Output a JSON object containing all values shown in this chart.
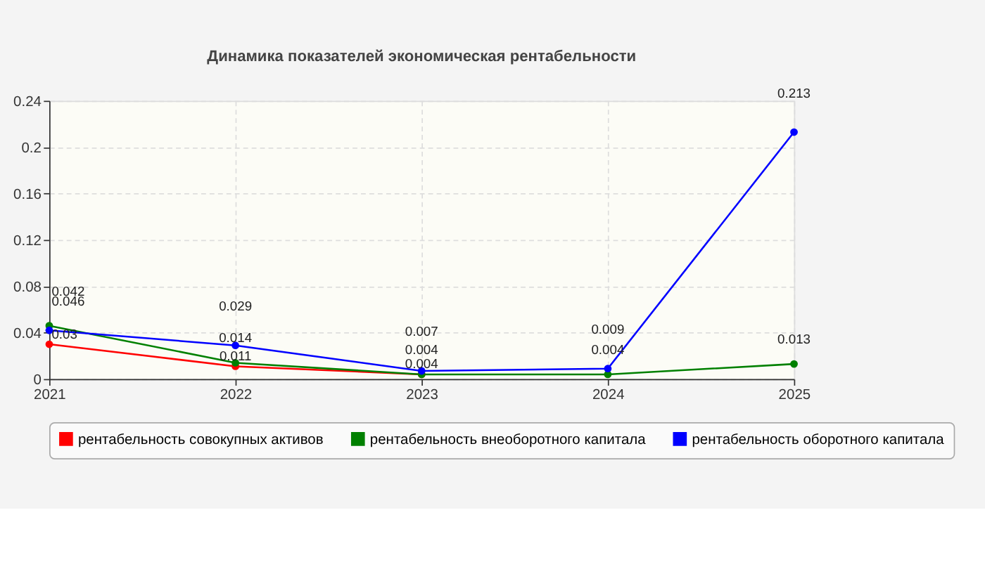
{
  "chart_data": {
    "type": "line",
    "title": "Динамика показателей экономическая рентабельности",
    "x": [
      2021,
      2022,
      2023,
      2024,
      2025
    ],
    "xlim": [
      2021,
      2025
    ],
    "xticks": [
      2021,
      2022,
      2023,
      2024,
      2025
    ],
    "ylim": [
      0,
      0.24
    ],
    "yticks": [
      0,
      0.04,
      0.08,
      0.12,
      0.16,
      0.2,
      0.24
    ],
    "series": [
      {
        "name": "рентабельность совокупных активов",
        "color": "#ff0000",
        "values": [
          0.03,
          0.011,
          0.004,
          null,
          null
        ]
      },
      {
        "name": "рентабельность внеоборотного капитала",
        "color": "#008000",
        "values": [
          0.046,
          0.014,
          0.004,
          0.004,
          0.013
        ]
      },
      {
        "name": "рентабельность оборотного капитала",
        "color": "#0000ff",
        "values": [
          0.042,
          0.029,
          0.007,
          0.009,
          0.213
        ]
      }
    ],
    "data_labels": true,
    "grid": true,
    "legend": "bottom",
    "marker": "circle",
    "line_style": "solid"
  }
}
